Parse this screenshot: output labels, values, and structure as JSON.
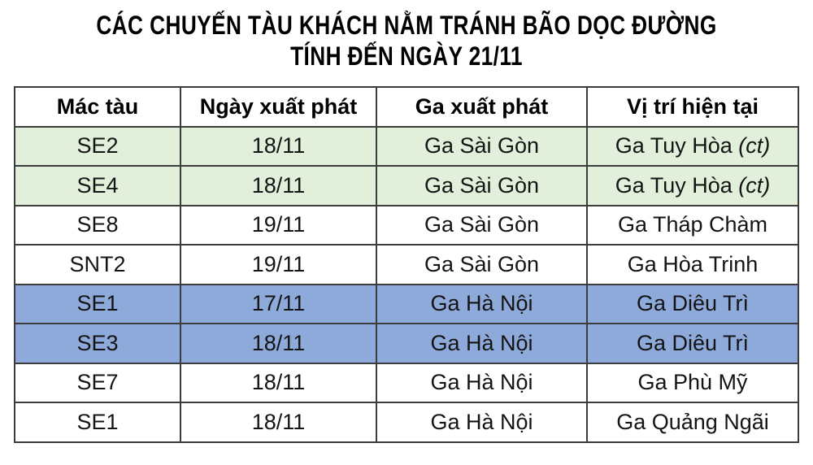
{
  "title": {
    "line1": "CÁC CHUYẾN TÀU KHÁCH NẰM TRÁNH BÃO DỌC ĐƯỜNG",
    "line2": "TÍNH ĐẾN NGÀY 21/11"
  },
  "colors": {
    "row_green": "#e2efda",
    "row_blue": "#8eaadb",
    "row_white": "#ffffff",
    "border": "#3c3c3c",
    "text": "#141414"
  },
  "table": {
    "columns": [
      "Mác tàu",
      "Ngày xuất phát",
      "Ga xuất phát",
      "Vị trí hiện tại"
    ],
    "rows": [
      {
        "train": "SE2",
        "depart_date": "18/11",
        "depart_station": "Ga Sài Gòn",
        "position": "Ga Tuy Hòa",
        "position_note": "(ct)",
        "highlight": "green"
      },
      {
        "train": "SE4",
        "depart_date": "18/11",
        "depart_station": "Ga Sài Gòn",
        "position": "Ga Tuy Hòa",
        "position_note": "(ct)",
        "highlight": "green"
      },
      {
        "train": "SE8",
        "depart_date": "19/11",
        "depart_station": "Ga Sài Gòn",
        "position": "Ga Tháp Chàm",
        "position_note": "",
        "highlight": "white"
      },
      {
        "train": "SNT2",
        "depart_date": "19/11",
        "depart_station": "Ga Sài Gòn",
        "position": "Ga Hòa Trinh",
        "position_note": "",
        "highlight": "white"
      },
      {
        "train": "SE1",
        "depart_date": "17/11",
        "depart_station": "Ga Hà Nội",
        "position": "Ga Diêu Trì",
        "position_note": "",
        "highlight": "blue"
      },
      {
        "train": "SE3",
        "depart_date": "18/11",
        "depart_station": "Ga Hà Nội",
        "position": "Ga Diêu Trì",
        "position_note": "",
        "highlight": "blue"
      },
      {
        "train": "SE7",
        "depart_date": "18/11",
        "depart_station": "Ga Hà Nội",
        "position": "Ga Phù Mỹ",
        "position_note": "",
        "highlight": "white"
      },
      {
        "train": "SE1",
        "depart_date": "18/11",
        "depart_station": "Ga Hà Nội",
        "position": "Ga Quảng Ngãi",
        "position_note": "",
        "highlight": "white"
      }
    ]
  },
  "chart_data": {
    "type": "table",
    "title": "CÁC CHUYẾN TÀU KHÁCH NẰM TRÁNH BÃO DỌC ĐƯỜNG TÍNH ĐẾN NGÀY 21/11",
    "columns": [
      "Mác tàu",
      "Ngày xuất phát",
      "Ga xuất phát",
      "Vị trí hiện tại"
    ],
    "rows": [
      [
        "SE2",
        "18/11",
        "Ga Sài Gòn",
        "Ga Tuy Hòa (ct)"
      ],
      [
        "SE4",
        "18/11",
        "Ga Sài Gòn",
        "Ga Tuy Hòa (ct)"
      ],
      [
        "SE8",
        "19/11",
        "Ga Sài Gòn",
        "Ga Tháp Chàm"
      ],
      [
        "SNT2",
        "19/11",
        "Ga Sài Gòn",
        "Ga Hòa Trinh"
      ],
      [
        "SE1",
        "17/11",
        "Ga Hà Nội",
        "Ga Diêu Trì"
      ],
      [
        "SE3",
        "18/11",
        "Ga Hà Nội",
        "Ga Diêu Trì"
      ],
      [
        "SE7",
        "18/11",
        "Ga Hà Nội",
        "Ga Phù Mỹ"
      ],
      [
        "SE1",
        "18/11",
        "Ga Hà Nội",
        "Ga Quảng Ngãi"
      ]
    ],
    "row_highlights": [
      "green",
      "green",
      "white",
      "white",
      "blue",
      "blue",
      "white",
      "white"
    ],
    "layout": {
      "grid": true,
      "header_background": "#ffffff",
      "green_rows_background": "#e2efda",
      "blue_rows_background": "#8eaadb"
    }
  }
}
